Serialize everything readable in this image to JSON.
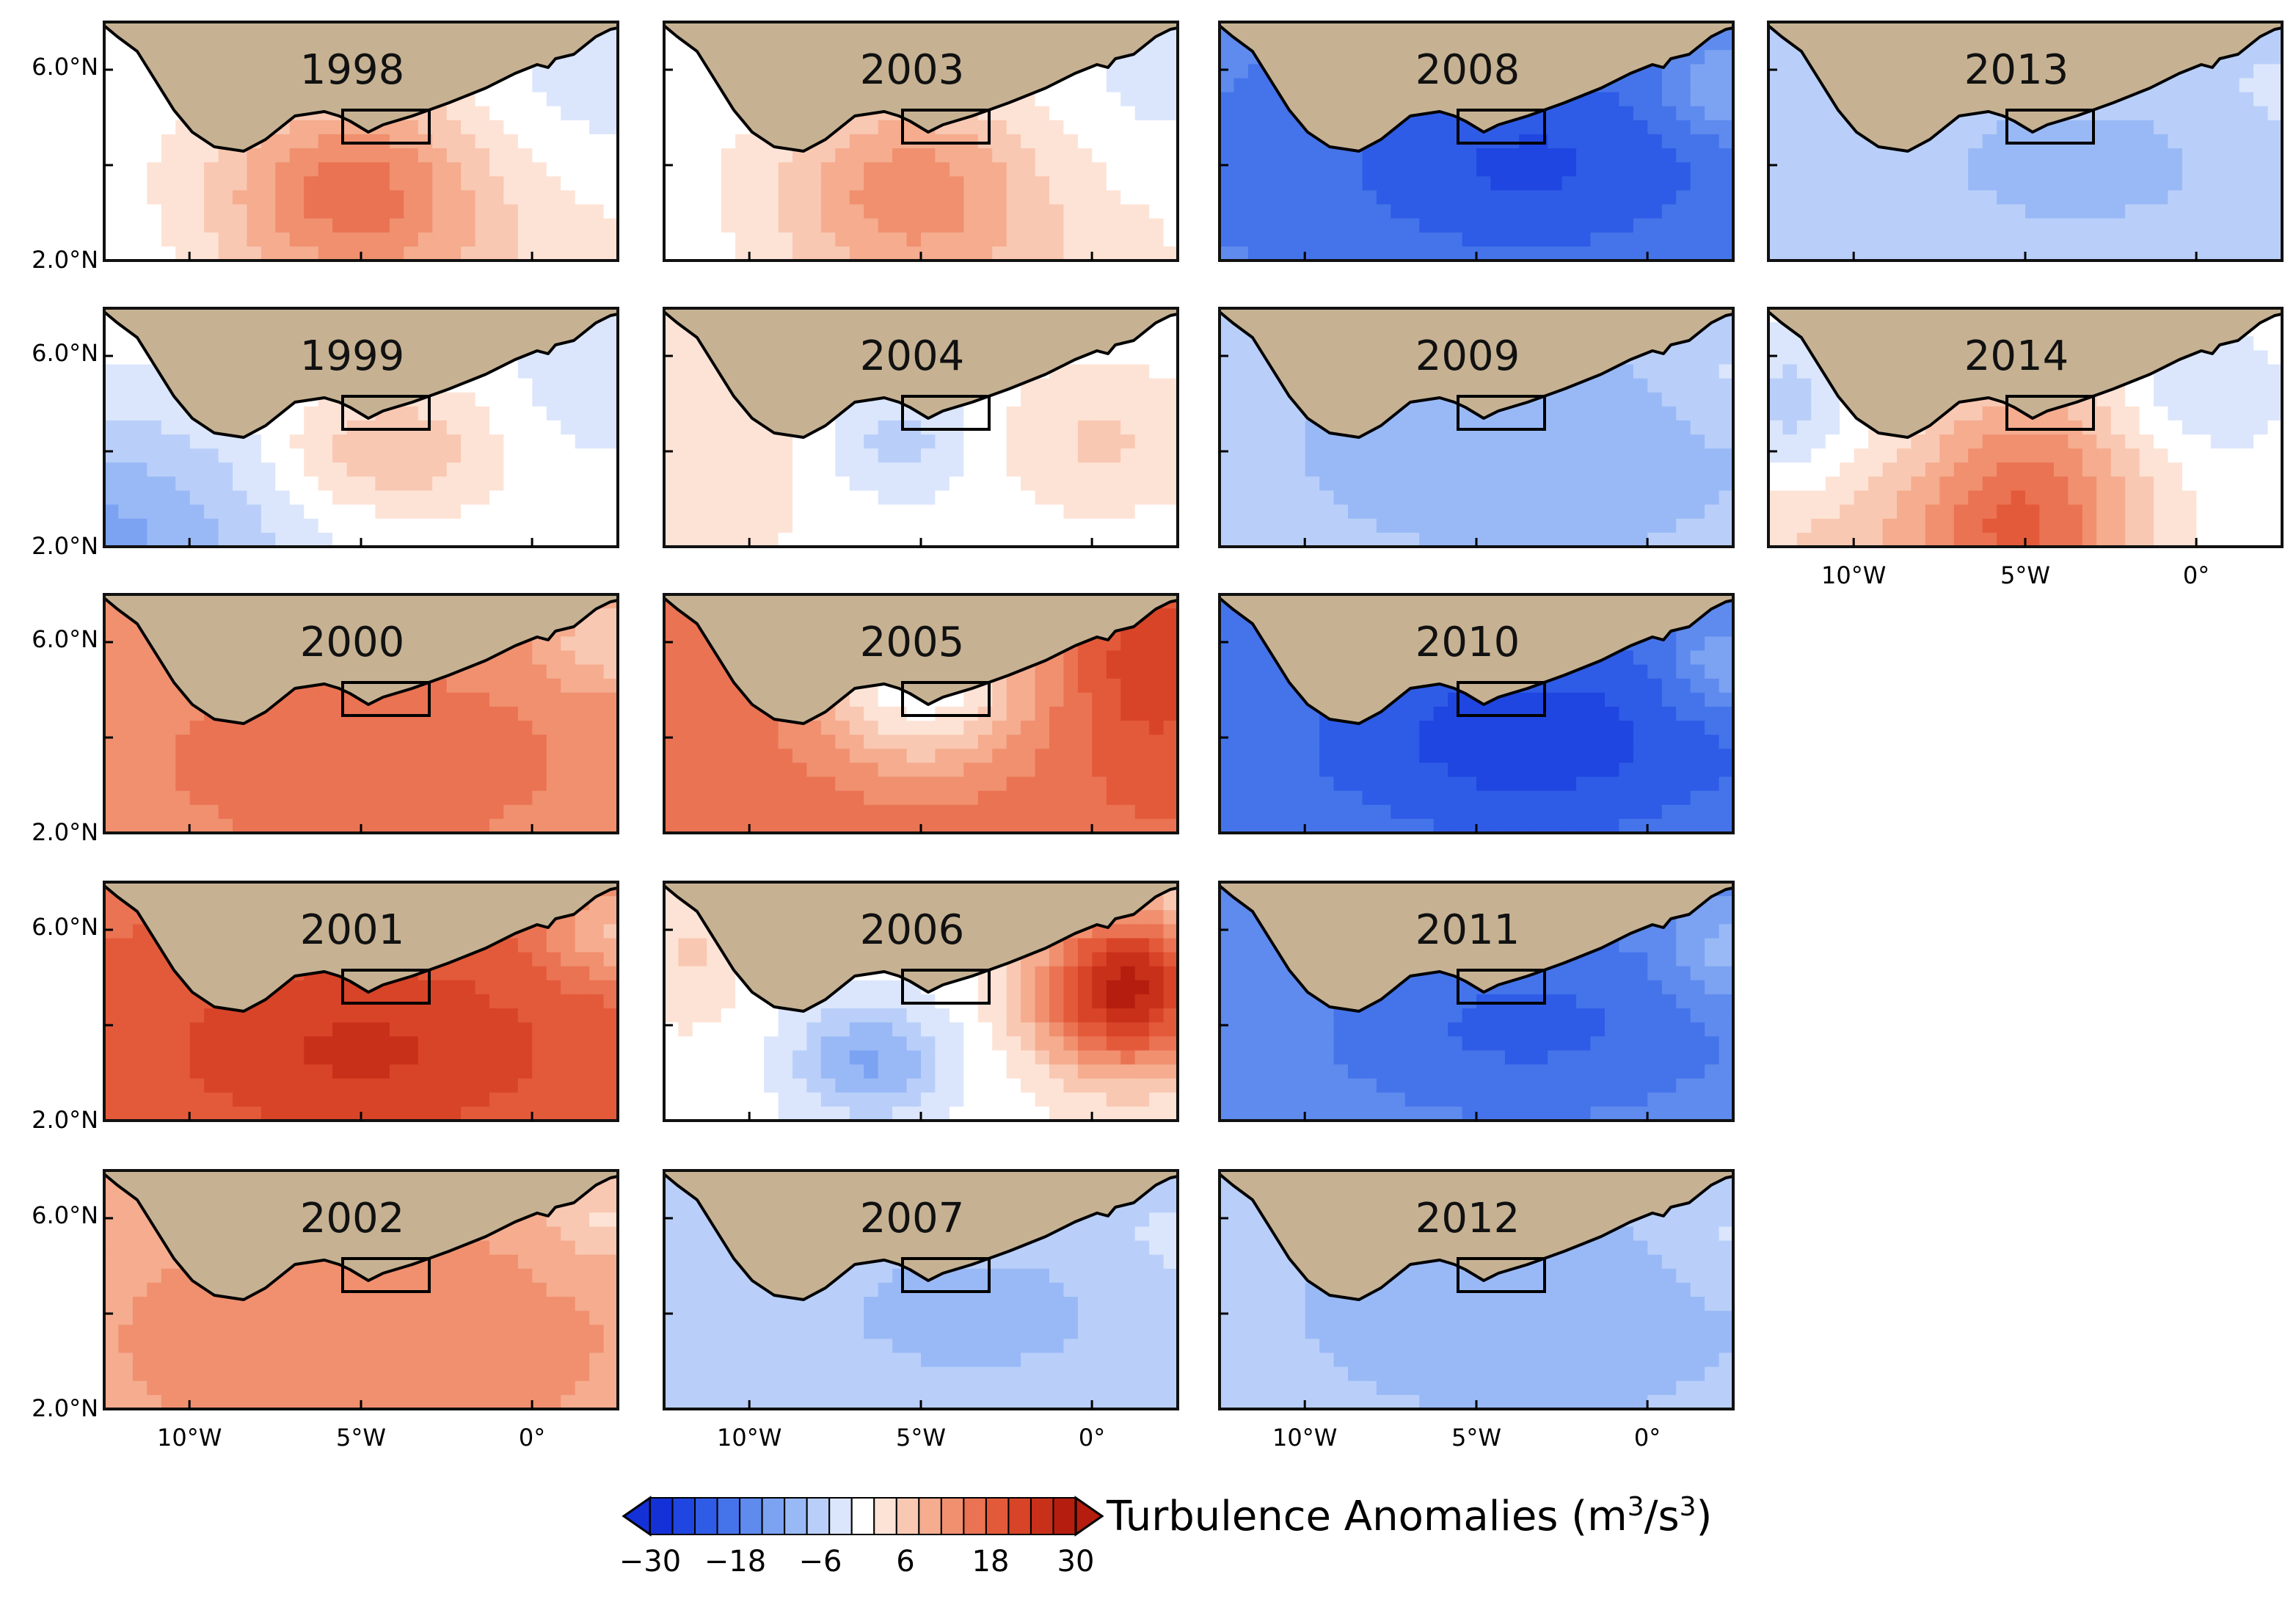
{
  "panels": [
    {
      "year": "1998",
      "mode": "warmSouth",
      "amp": 0.55
    },
    {
      "year": "1999",
      "mode": "blueWestRedCenter",
      "amp": 0.35
    },
    {
      "year": "2000",
      "mode": "redWide",
      "amp": 0.6
    },
    {
      "year": "2001",
      "mode": "redWide",
      "amp": 0.85
    },
    {
      "year": "2002",
      "mode": "redWide",
      "amp": 0.5
    },
    {
      "year": "2003",
      "mode": "warmSouth",
      "amp": 0.45
    },
    {
      "year": "2004",
      "mode": "blueCenterRedEast",
      "amp": 0.3
    },
    {
      "year": "2005",
      "mode": "redWithWhiteCenter",
      "amp": 0.7
    },
    {
      "year": "2006",
      "mode": "redEast",
      "amp": 0.9
    },
    {
      "year": "2007",
      "mode": "blueWide",
      "amp": 0.3
    },
    {
      "year": "2008",
      "mode": "blueWide",
      "amp": 0.85
    },
    {
      "year": "2009",
      "mode": "blueWide",
      "amp": 0.35
    },
    {
      "year": "2010",
      "mode": "blueWide",
      "amp": 0.9
    },
    {
      "year": "2011",
      "mode": "blueWide",
      "amp": 0.75
    },
    {
      "year": "2012",
      "mode": "blueWide",
      "amp": 0.35
    },
    {
      "year": "2013",
      "mode": "blueWide",
      "amp": 0.3
    },
    {
      "year": "2014",
      "mode": "redPlume",
      "amp": 0.6
    }
  ],
  "lat_labels": [
    "6.0°N",
    "2.0°N"
  ],
  "lon_labels": [
    "10°W",
    "5°W",
    "0°"
  ],
  "colorbar": {
    "title_prefix": "Turbulence Anomalies (m",
    "title_sup1": "3",
    "title_mid": "/s",
    "title_sup2": "3",
    "title_suffix": ")",
    "ticks": [
      "−30",
      "−18",
      "−6",
      "6",
      "18",
      "30"
    ],
    "colors": [
      "#1431d8",
      "#1f46e0",
      "#2f5ce6",
      "#4574ea",
      "#5f8bee",
      "#7ca2f2",
      "#99b9f6",
      "#b9cff9",
      "#dbe6fc",
      "#ffffff",
      "#fde3d6",
      "#f9c8b2",
      "#f5ac8f",
      "#f0906f",
      "#ea7353",
      "#e35a3a",
      "#d84428",
      "#c9301a",
      "#b51d0e"
    ]
  }
}
